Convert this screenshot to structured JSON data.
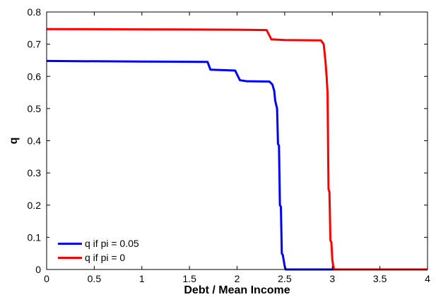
{
  "chart_data": {
    "type": "line",
    "title": "",
    "xlabel": "Debt / Mean Income",
    "ylabel": "q",
    "xlim": [
      0,
      4
    ],
    "ylim": [
      0,
      0.8
    ],
    "xticks": [
      0,
      0.5,
      1,
      1.5,
      2,
      2.5,
      3,
      3.5,
      4
    ],
    "xtick_labels": [
      "0",
      "0.5",
      "1",
      "1.5",
      "2",
      "2.5",
      "3",
      "3.5",
      "4"
    ],
    "yticks": [
      0,
      0.1,
      0.2,
      0.3,
      0.4,
      0.5,
      0.6,
      0.7,
      0.8
    ],
    "ytick_labels": [
      "0",
      "0.1",
      "0.2",
      "0.3",
      "0.4",
      "0.5",
      "0.6",
      "0.7",
      "0.8"
    ],
    "grid": false,
    "legend_position": "bottom-left",
    "series": [
      {
        "name": "q if pi = 0.05",
        "color": "#0000ff",
        "x": [
          0,
          1.0,
          1.69,
          1.72,
          1.98,
          2.03,
          2.1,
          2.34,
          2.37,
          2.39,
          2.4,
          2.42,
          2.43,
          2.44,
          2.45,
          2.46,
          2.47,
          2.48,
          2.5,
          2.51,
          2.6,
          4.0
        ],
        "y": [
          0.648,
          0.646,
          0.645,
          0.621,
          0.618,
          0.588,
          0.585,
          0.584,
          0.575,
          0.555,
          0.525,
          0.5,
          0.39,
          0.385,
          0.2,
          0.195,
          0.05,
          0.045,
          0.01,
          0.0,
          0.0,
          0.0
        ]
      },
      {
        "name": "q if pi = 0",
        "color": "#ff0000",
        "x": [
          0,
          1.0,
          2.0,
          2.31,
          2.36,
          2.5,
          2.88,
          2.91,
          2.92,
          2.93,
          2.94,
          2.95,
          2.96,
          2.97,
          2.98,
          2.99,
          3.0,
          3.01,
          3.02,
          3.1,
          4.0
        ],
        "y": [
          0.747,
          0.746,
          0.745,
          0.744,
          0.715,
          0.713,
          0.712,
          0.7,
          0.67,
          0.64,
          0.6,
          0.55,
          0.25,
          0.24,
          0.09,
          0.085,
          0.03,
          0.01,
          0.0,
          0.0,
          0.0
        ]
      }
    ]
  }
}
